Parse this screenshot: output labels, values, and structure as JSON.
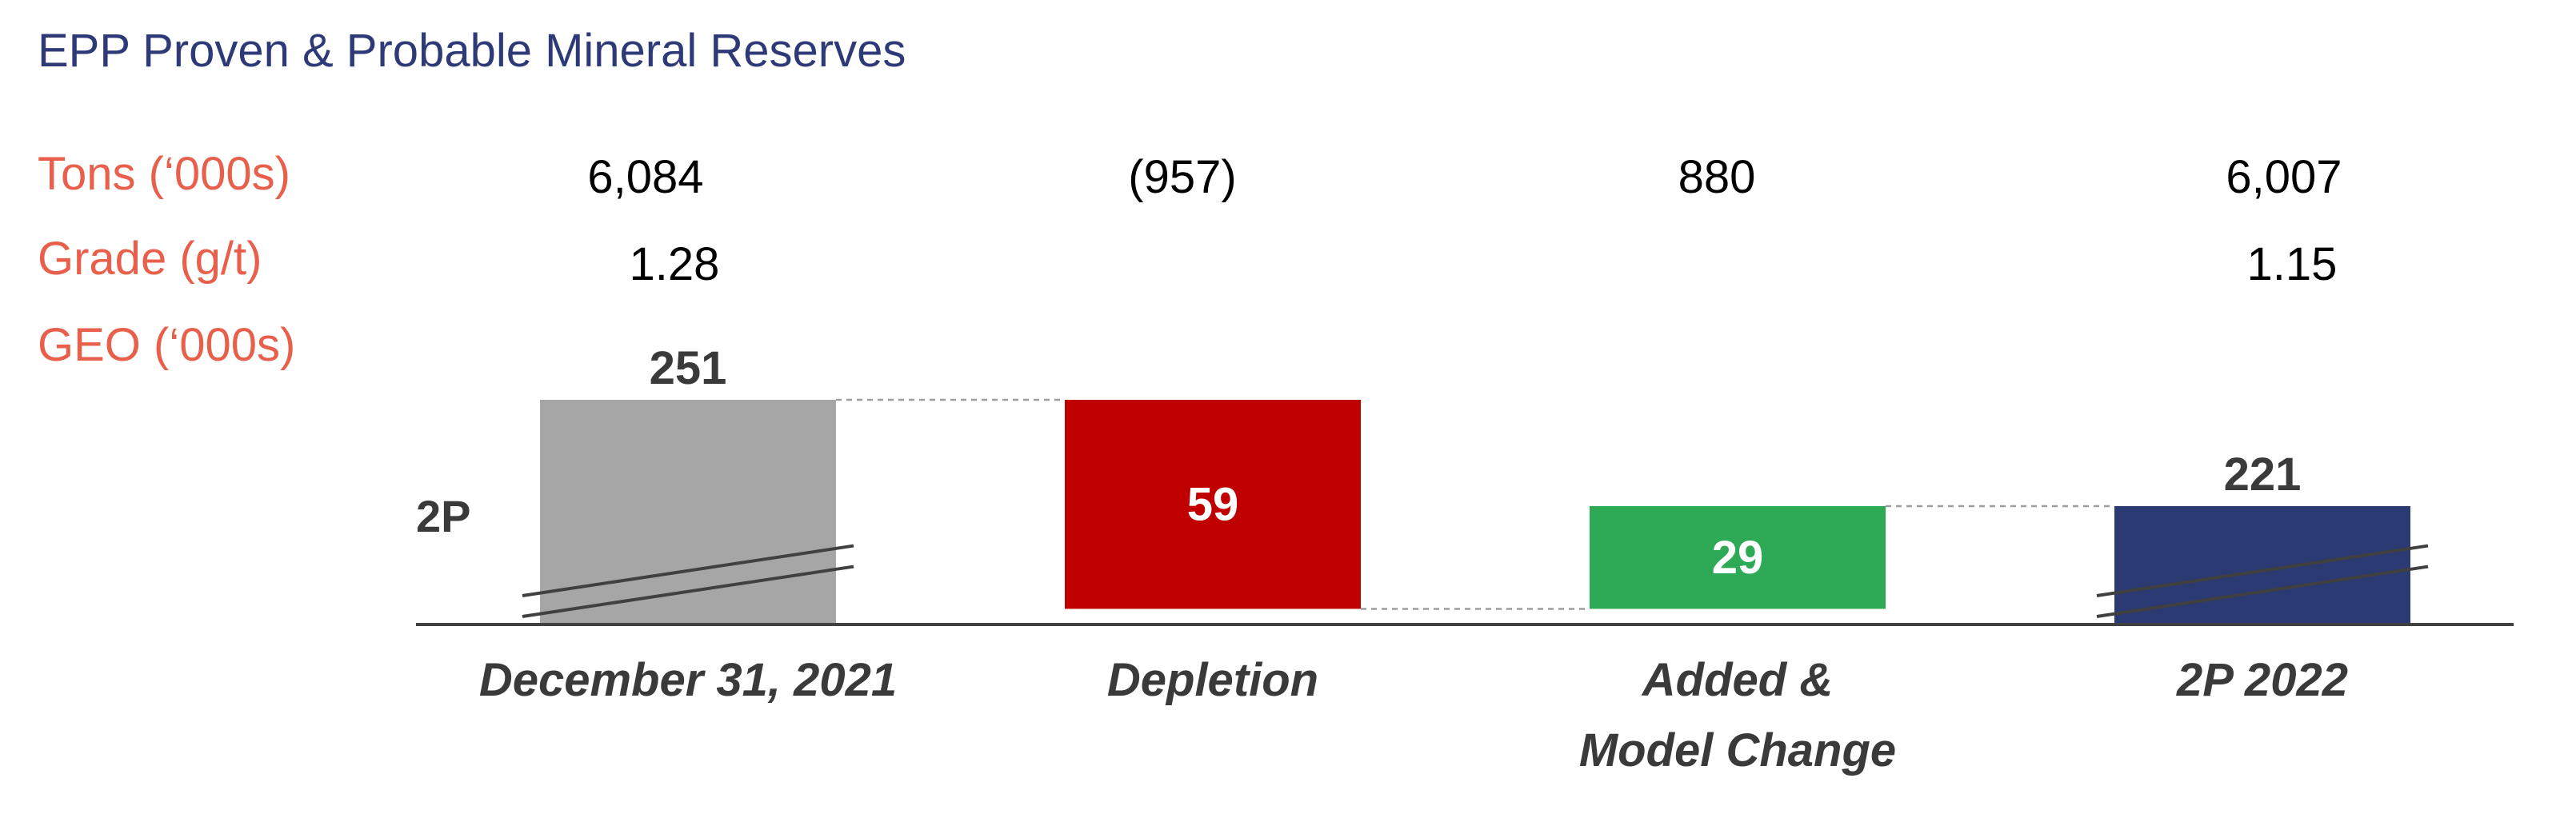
{
  "title": "EPP Proven & Probable Mineral Reserves",
  "row_labels": {
    "tons": "Tons (‘000s)",
    "grade": "Grade (g/t)",
    "geo": "GEO (‘000s)"
  },
  "series_axis_label": "2P",
  "colors": {
    "title": "#2E3A78",
    "row_label": "#E8604C",
    "text": "#000000",
    "bold_label": "#3A3A3A",
    "start_bar": "#A6A6A6",
    "decrease_bar": "#C00000",
    "increase_bar": "#2EAA57",
    "end_bar": "#2B3A72",
    "bar_value_text": "#FFFFFF",
    "connector": "#9E9E9E",
    "axis": "#404040"
  },
  "chart_data": {
    "type": "bar",
    "subtype": "waterfall",
    "title": "EPP Proven & Probable Mineral Reserves",
    "categories": [
      [
        "December 31, 2021"
      ],
      [
        "Depletion"
      ],
      [
        "Added &",
        "Model Change"
      ],
      [
        "2P 2022"
      ]
    ],
    "series": [
      {
        "name": "GEO (‘000s)",
        "values": [
          251,
          -59,
          29,
          221
        ],
        "labels": [
          "251",
          "59",
          "29",
          "221"
        ],
        "kinds": [
          "total",
          "decrease",
          "increase",
          "total"
        ]
      }
    ],
    "tons": [
      "6,084",
      "(957)",
      "880",
      "6,007"
    ],
    "grade": [
      "1.28",
      "",
      "",
      "1.15"
    ],
    "axis_break": true,
    "xlabel": "",
    "ylabel": "2P",
    "legend": "none",
    "grid": false
  }
}
